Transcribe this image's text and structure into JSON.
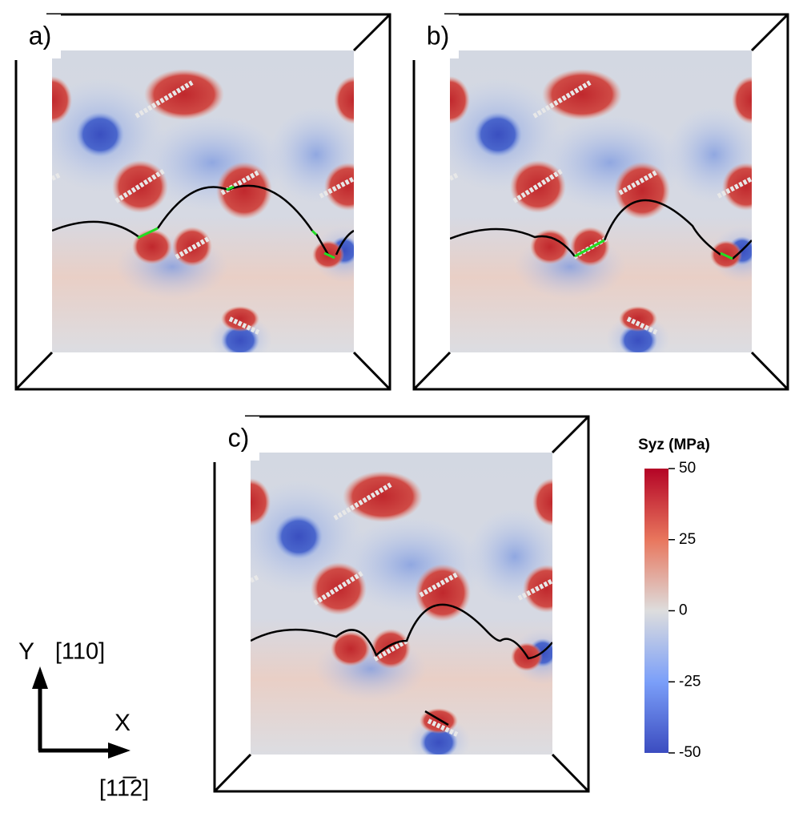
{
  "panels": [
    {
      "label": "a)"
    },
    {
      "label": "b)"
    },
    {
      "label": "c)"
    }
  ],
  "colorbar": {
    "title": "Syz (MPa)",
    "lim": [
      -50,
      50
    ],
    "ticks": [
      50,
      25,
      0,
      -25,
      -50
    ]
  },
  "axes": {
    "y": {
      "name": "Y",
      "direction": "[110]"
    },
    "x": {
      "name": "X",
      "direction": "[11̅2]"
    }
  }
}
